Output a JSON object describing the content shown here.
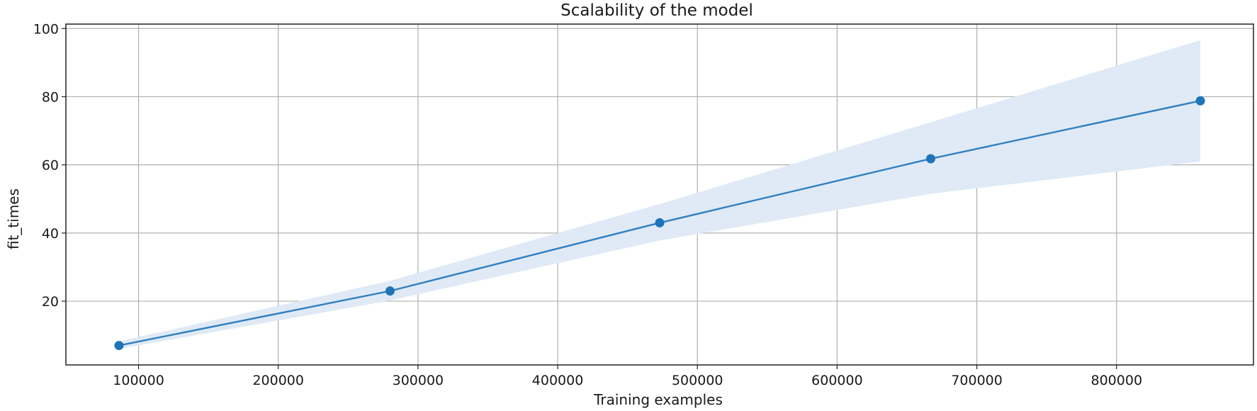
{
  "chart_data": {
    "type": "line",
    "title": "Scalability of the model",
    "xlabel": "Training examples",
    "ylabel": "fit_times",
    "xlim": [
      48000,
      898000
    ],
    "ylim": [
      1.3,
      101.3
    ],
    "xticks": [
      100000,
      200000,
      300000,
      400000,
      500000,
      600000,
      700000,
      800000
    ],
    "yticks": [
      20,
      40,
      60,
      80,
      100
    ],
    "grid": true,
    "colors": {
      "line": "#2f7fc1",
      "band": "#dfeaf6",
      "marker": "#1f74b8"
    },
    "series": [
      {
        "x": [
          86000,
          280000,
          473000,
          667000,
          860000
        ],
        "values": [
          7.0,
          23.0,
          43.0,
          61.8,
          78.8
        ],
        "upper": [
          8.2,
          26.0,
          48.5,
          72.5,
          96.6
        ],
        "lower": [
          6.0,
          20.2,
          37.8,
          51.5,
          61.0
        ]
      }
    ]
  }
}
